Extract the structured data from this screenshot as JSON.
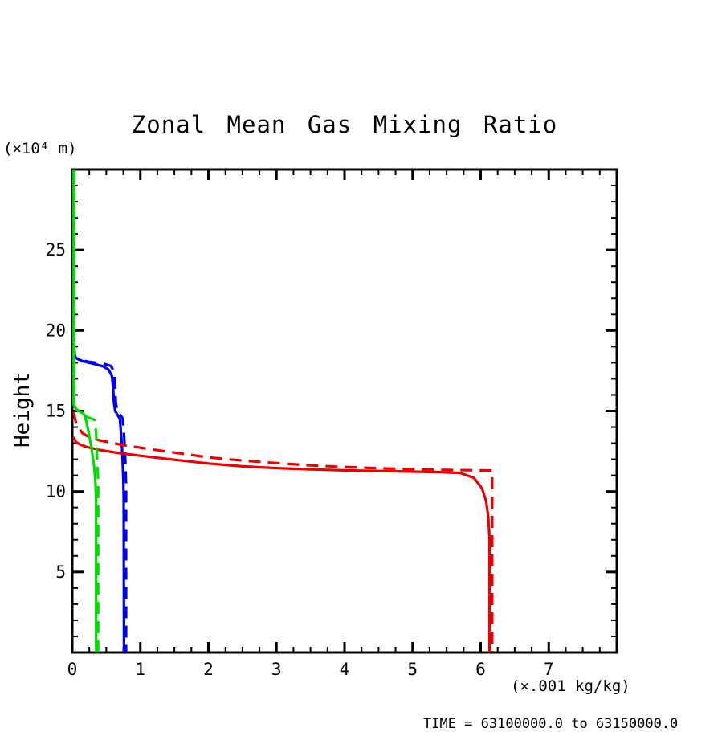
{
  "chart_data": {
    "type": "line",
    "title": "Zonal Mean Gas Mixing Ratio",
    "ylabel": "Height",
    "y_unit_label": "(×10⁴ m)",
    "x_unit_label": "(×.001 kg/kg)",
    "footer": "TIME = 63100000.0 to 63150000.0",
    "xlim": [
      0,
      8
    ],
    "ylim": [
      0,
      30
    ],
    "x_major_ticks": [
      0,
      1,
      2,
      3,
      4,
      5,
      6,
      7
    ],
    "x_minor_step": 0.25,
    "y_major_ticks": [
      5,
      10,
      15,
      20,
      25
    ],
    "y_minor_step": 1,
    "grid": false,
    "legend": "none",
    "axis_color": "#000000",
    "series": [
      {
        "name": "blue-dashed",
        "color": "#0000ee",
        "style": "dashed",
        "points": [
          [
            0.03,
            18.9
          ],
          [
            0.04,
            18.35
          ],
          [
            0.1,
            18.2
          ],
          [
            0.25,
            18.05
          ],
          [
            0.45,
            17.95
          ],
          [
            0.57,
            17.8
          ],
          [
            0.61,
            17.45
          ],
          [
            0.63,
            16.6
          ],
          [
            0.64,
            15.5
          ],
          [
            0.66,
            15.05
          ],
          [
            0.7,
            14.8
          ],
          [
            0.74,
            14.55
          ],
          [
            0.76,
            13.6
          ],
          [
            0.775,
            12.4
          ],
          [
            0.785,
            11.2
          ],
          [
            0.79,
            10.2
          ],
          [
            0.79,
            0
          ]
        ]
      },
      {
        "name": "blue-solid",
        "color": "#0000ee",
        "style": "solid",
        "points": [
          [
            0.02,
            19.0
          ],
          [
            0.02,
            18.45
          ],
          [
            0.07,
            18.25
          ],
          [
            0.15,
            18.1
          ],
          [
            0.3,
            17.95
          ],
          [
            0.45,
            17.78
          ],
          [
            0.53,
            17.58
          ],
          [
            0.58,
            17.2
          ],
          [
            0.6,
            16.5
          ],
          [
            0.61,
            15.6
          ],
          [
            0.63,
            15.0
          ],
          [
            0.67,
            14.72
          ],
          [
            0.7,
            14.5
          ],
          [
            0.72,
            13.4
          ],
          [
            0.735,
            12.4
          ],
          [
            0.75,
            10.7
          ],
          [
            0.755,
            9.6
          ],
          [
            0.76,
            0
          ]
        ]
      },
      {
        "name": "red-dashed",
        "color": "#ee0000",
        "style": "dashed",
        "points": [
          [
            0.02,
            14.95
          ],
          [
            0.05,
            14.35
          ],
          [
            0.09,
            13.95
          ],
          [
            0.15,
            13.62
          ],
          [
            0.25,
            13.38
          ],
          [
            0.4,
            13.18
          ],
          [
            0.7,
            12.92
          ],
          [
            1.0,
            12.72
          ],
          [
            1.5,
            12.42
          ],
          [
            2.0,
            12.12
          ],
          [
            2.5,
            11.92
          ],
          [
            3.0,
            11.76
          ],
          [
            3.5,
            11.62
          ],
          [
            4.0,
            11.52
          ],
          [
            4.5,
            11.44
          ],
          [
            5.0,
            11.38
          ],
          [
            5.5,
            11.34
          ],
          [
            6.0,
            11.31
          ],
          [
            6.17,
            11.3
          ],
          [
            6.17,
            0
          ]
        ]
      },
      {
        "name": "red-solid",
        "color": "#ee0000",
        "style": "solid",
        "points": [
          [
            0.02,
            13.4
          ],
          [
            0.05,
            13.1
          ],
          [
            0.1,
            12.95
          ],
          [
            0.2,
            12.78
          ],
          [
            0.4,
            12.58
          ],
          [
            0.7,
            12.38
          ],
          [
            1.0,
            12.22
          ],
          [
            1.5,
            11.97
          ],
          [
            2.0,
            11.74
          ],
          [
            2.5,
            11.56
          ],
          [
            3.0,
            11.45
          ],
          [
            3.5,
            11.37
          ],
          [
            4.0,
            11.31
          ],
          [
            4.5,
            11.27
          ],
          [
            5.0,
            11.23
          ],
          [
            5.4,
            11.2
          ],
          [
            5.7,
            11.15
          ],
          [
            5.9,
            10.85
          ],
          [
            6.02,
            10.2
          ],
          [
            6.08,
            9.4
          ],
          [
            6.11,
            8.5
          ],
          [
            6.13,
            7.2
          ],
          [
            6.13,
            0
          ]
        ]
      },
      {
        "name": "green-dashed",
        "color": "#00dd00",
        "style": "dashed",
        "points": [
          [
            0.03,
            30
          ],
          [
            0.03,
            15.35
          ],
          [
            0.07,
            15.05
          ],
          [
            0.13,
            14.9
          ],
          [
            0.22,
            14.62
          ],
          [
            0.3,
            14.5
          ],
          [
            0.33,
            14.42
          ],
          [
            0.35,
            13.6
          ],
          [
            0.36,
            12.6
          ],
          [
            0.37,
            11.6
          ],
          [
            0.38,
            10.6
          ],
          [
            0.38,
            0
          ]
        ]
      },
      {
        "name": "green-solid",
        "color": "#00dd00",
        "style": "solid",
        "points": [
          [
            0.02,
            30
          ],
          [
            0.02,
            15.4
          ],
          [
            0.05,
            15.15
          ],
          [
            0.1,
            14.98
          ],
          [
            0.17,
            14.82
          ],
          [
            0.2,
            14.45
          ],
          [
            0.24,
            13.7
          ],
          [
            0.28,
            12.75
          ],
          [
            0.32,
            11.6
          ],
          [
            0.34,
            10.6
          ],
          [
            0.35,
            9.4
          ],
          [
            0.35,
            0
          ]
        ]
      }
    ]
  }
}
